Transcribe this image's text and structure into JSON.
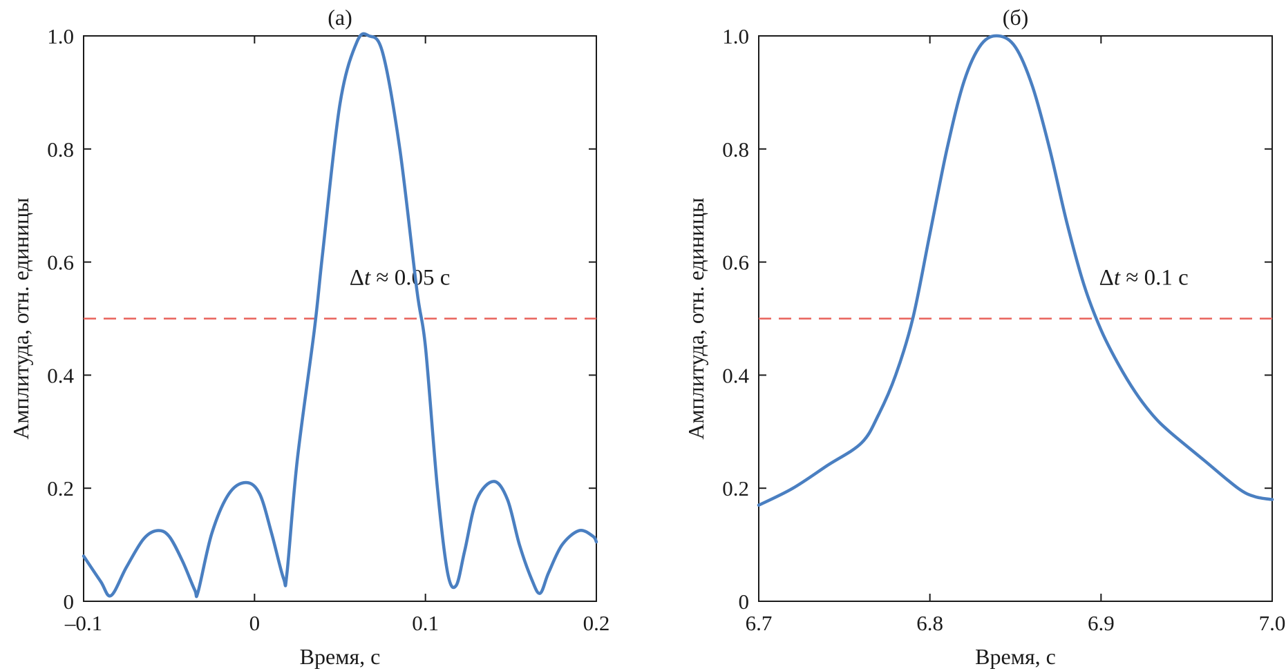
{
  "figure": {
    "line_color": "#4a7fc1",
    "ref_color": "#e8605a"
  },
  "chart_data": [
    {
      "type": "line",
      "title": "(а)",
      "xlabel": "Время, с",
      "ylabel": "Амплитуда, отн. единицы",
      "xlim": [
        -0.1,
        0.2
      ],
      "ylim": [
        0,
        1.0
      ],
      "xticks": [
        -0.1,
        0,
        0.1,
        0.2
      ],
      "xtick_labels": [
        "–0.1",
        "0",
        "0.1",
        "0.2"
      ],
      "yticks": [
        0,
        0.2,
        0.4,
        0.6,
        0.8,
        1.0
      ],
      "ytick_labels": [
        "0",
        "0.2",
        "0.4",
        "0.6",
        "0.8",
        "1.0"
      ],
      "grid": false,
      "reference_line": {
        "y": 0.5,
        "style": "dashed"
      },
      "annotation": {
        "prefix": "Δ",
        "var": "t",
        "text": " ≈ 0.05 с",
        "x": 0.085,
        "y": 0.56
      },
      "series": [
        {
          "name": "amplitude",
          "x": [
            -0.1,
            -0.09,
            -0.084,
            -0.075,
            -0.065,
            -0.057,
            -0.05,
            -0.042,
            -0.035,
            -0.033,
            -0.025,
            -0.015,
            -0.005,
            0.003,
            0.01,
            0.017,
            0.019,
            0.025,
            0.035,
            0.04,
            0.05,
            0.06,
            0.067,
            0.075,
            0.085,
            0.095,
            0.1,
            0.107,
            0.113,
            0.118,
            0.123,
            0.13,
            0.14,
            0.148,
            0.155,
            0.162,
            0.167,
            0.172,
            0.18,
            0.19,
            0.198,
            0.2
          ],
          "y": [
            0.08,
            0.035,
            0.01,
            0.06,
            0.11,
            0.125,
            0.115,
            0.07,
            0.02,
            0.017,
            0.12,
            0.19,
            0.21,
            0.19,
            0.12,
            0.04,
            0.05,
            0.25,
            0.48,
            0.62,
            0.88,
            0.99,
            1.0,
            0.97,
            0.8,
            0.55,
            0.45,
            0.2,
            0.05,
            0.028,
            0.09,
            0.18,
            0.212,
            0.18,
            0.1,
            0.04,
            0.014,
            0.05,
            0.1,
            0.125,
            0.115,
            0.105
          ]
        }
      ]
    },
    {
      "type": "line",
      "title": "(б)",
      "xlabel": "Время, с",
      "ylabel": "Амплитуда, отн. единицы",
      "xlim": [
        6.7,
        7.0
      ],
      "ylim": [
        0,
        1.0
      ],
      "xticks": [
        6.7,
        6.8,
        6.9,
        7.0
      ],
      "xtick_labels": [
        "6.7",
        "6.8",
        "6.9",
        "7.0"
      ],
      "yticks": [
        0,
        0.2,
        0.4,
        0.6,
        0.8,
        1.0
      ],
      "ytick_labels": [
        "0",
        "0.2",
        "0.4",
        "0.6",
        "0.8",
        "1.0"
      ],
      "grid": false,
      "reference_line": {
        "y": 0.5,
        "style": "dashed"
      },
      "annotation": {
        "prefix": "Δ",
        "var": "t",
        "text": " ≈ 0.1 с",
        "x": 6.925,
        "y": 0.56
      },
      "series": [
        {
          "name": "amplitude",
          "x": [
            6.7,
            6.72,
            6.74,
            6.76,
            6.77,
            6.78,
            6.79,
            6.8,
            6.81,
            6.82,
            6.83,
            6.84,
            6.85,
            6.86,
            6.87,
            6.88,
            6.89,
            6.9,
            6.91,
            6.92,
            6.93,
            6.94,
            6.96,
            6.98,
            6.99,
            7.0
          ],
          "y": [
            0.17,
            0.2,
            0.24,
            0.28,
            0.33,
            0.4,
            0.5,
            0.65,
            0.8,
            0.92,
            0.985,
            1.0,
            0.98,
            0.91,
            0.8,
            0.67,
            0.56,
            0.48,
            0.42,
            0.37,
            0.33,
            0.3,
            0.25,
            0.2,
            0.185,
            0.18
          ]
        }
      ]
    }
  ]
}
